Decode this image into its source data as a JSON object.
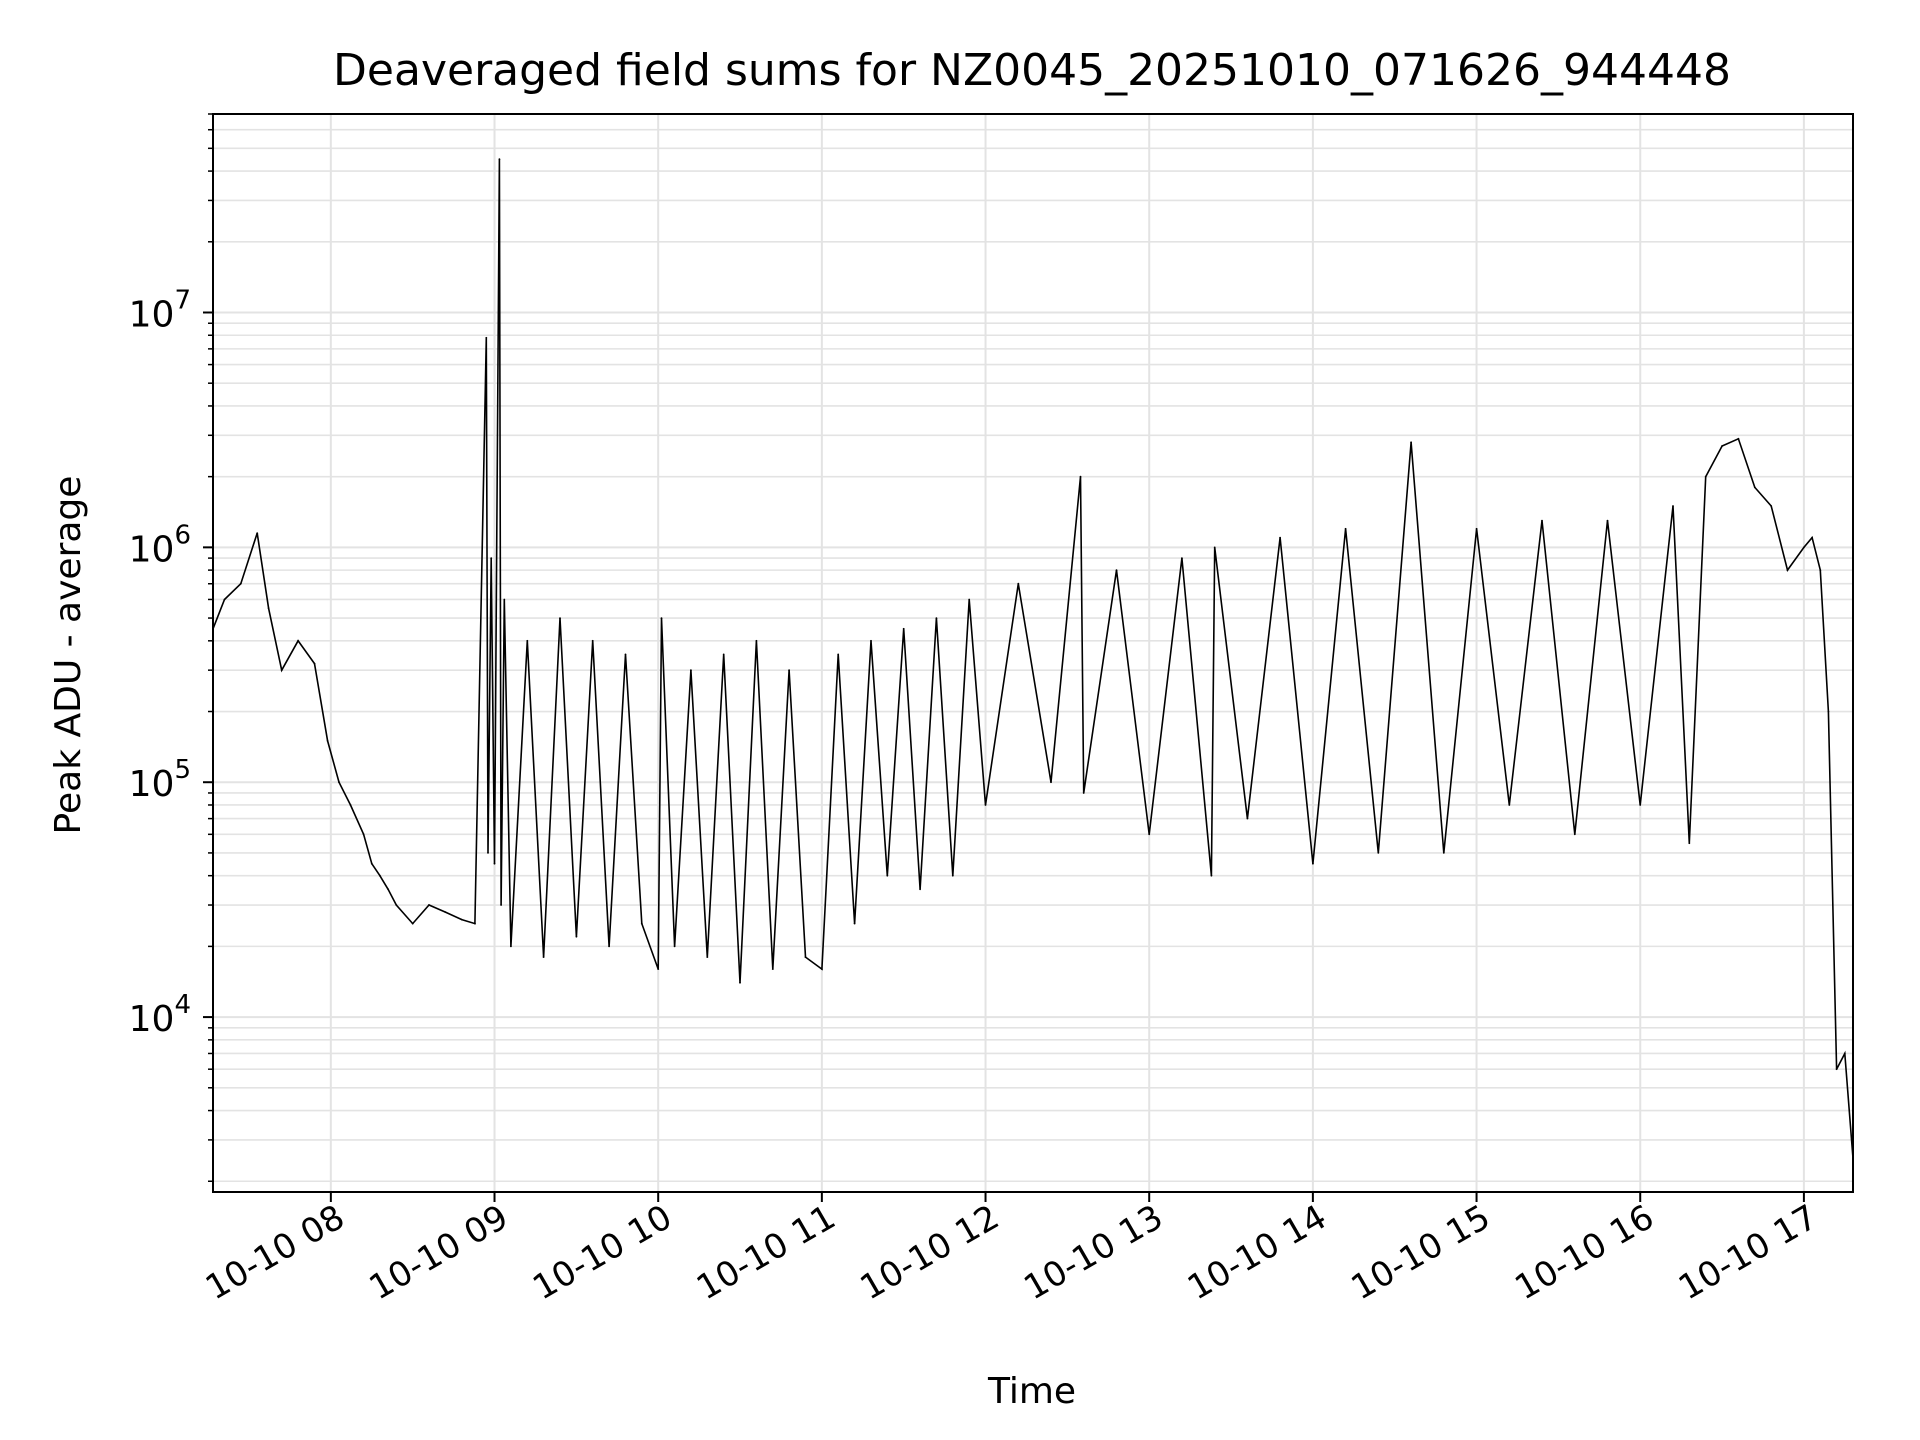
{
  "chart_data": {
    "type": "line",
    "title": "Deaveraged field sums for NZ0045_20251010_071626_944448",
    "xlabel": "Time",
    "ylabel": "Peak ADU - average",
    "yscale": "log",
    "x_unit": "hours since 2025-10-10 00:00",
    "xlim": [
      7.28,
      17.3
    ],
    "ylim": [
      1800,
      70000000
    ],
    "grid": true,
    "x_ticks": [
      {
        "value": 8,
        "label": "10-10 08"
      },
      {
        "value": 9,
        "label": "10-10 09"
      },
      {
        "value": 10,
        "label": "10-10 10"
      },
      {
        "value": 11,
        "label": "10-10 11"
      },
      {
        "value": 12,
        "label": "10-10 12"
      },
      {
        "value": 13,
        "label": "10-10 13"
      },
      {
        "value": 14,
        "label": "10-10 14"
      },
      {
        "value": 15,
        "label": "10-10 15"
      },
      {
        "value": 16,
        "label": "10-10 16"
      },
      {
        "value": 17,
        "label": "10-10 17"
      }
    ],
    "y_ticks": [
      {
        "value": 10000,
        "base": "10",
        "exp": "4"
      },
      {
        "value": 100000,
        "base": "10",
        "exp": "5"
      },
      {
        "value": 1000000,
        "base": "10",
        "exp": "6"
      },
      {
        "value": 10000000,
        "base": "10",
        "exp": "7"
      }
    ],
    "series": [
      {
        "name": "field sums",
        "color": "#000000",
        "style": "dense noisy trace; values approximated from the upper envelope, lower envelope and notable spikes",
        "x": [
          7.28,
          7.35,
          7.45,
          7.55,
          7.62,
          7.7,
          7.8,
          7.9,
          7.98,
          8.05,
          8.12,
          8.2,
          8.25,
          8.3,
          8.35,
          8.4,
          8.5,
          8.6,
          8.7,
          8.8,
          8.88,
          8.95,
          8.96,
          8.98,
          9.0,
          9.03,
          9.04,
          9.06,
          9.1,
          9.2,
          9.3,
          9.4,
          9.5,
          9.6,
          9.7,
          9.8,
          9.9,
          10.0,
          10.02,
          10.1,
          10.2,
          10.3,
          10.4,
          10.5,
          10.6,
          10.7,
          10.8,
          10.9,
          11.0,
          11.1,
          11.2,
          11.3,
          11.4,
          11.5,
          11.6,
          11.7,
          11.8,
          11.9,
          12.0,
          12.2,
          12.4,
          12.58,
          12.6,
          12.8,
          13.0,
          13.2,
          13.38,
          13.4,
          13.6,
          13.8,
          14.0,
          14.2,
          14.4,
          14.6,
          14.8,
          15.0,
          15.2,
          15.4,
          15.6,
          15.8,
          16.0,
          16.2,
          16.3,
          16.4,
          16.5,
          16.6,
          16.7,
          16.8,
          16.9,
          17.0,
          17.05,
          17.1,
          17.15,
          17.2,
          17.25,
          17.3
        ],
        "values": [
          450000,
          600000,
          700000,
          1150000,
          550000,
          300000,
          400000,
          320000,
          150000,
          100000,
          80000,
          60000,
          45000,
          40000,
          35000,
          30000,
          25000,
          30000,
          28000,
          26000,
          25000,
          7800000,
          50000,
          900000,
          45000,
          45000000,
          30000,
          600000,
          20000,
          400000,
          18000,
          500000,
          22000,
          400000,
          20000,
          350000,
          25000,
          16000,
          500000,
          20000,
          300000,
          18000,
          350000,
          14000,
          400000,
          16000,
          300000,
          18000,
          16000,
          350000,
          25000,
          400000,
          40000,
          450000,
          35000,
          500000,
          40000,
          600000,
          80000,
          700000,
          100000,
          2000000,
          90000,
          800000,
          60000,
          900000,
          40000,
          1000000,
          70000,
          1100000,
          45000,
          1200000,
          50000,
          2800000,
          50000,
          1200000,
          80000,
          1300000,
          60000,
          1300000,
          80000,
          1500000,
          55000,
          2000000,
          2700000,
          2900000,
          1800000,
          1500000,
          800000,
          1000000,
          1100000,
          800000,
          200000,
          6000,
          7000,
          2500
        ]
      }
    ]
  }
}
